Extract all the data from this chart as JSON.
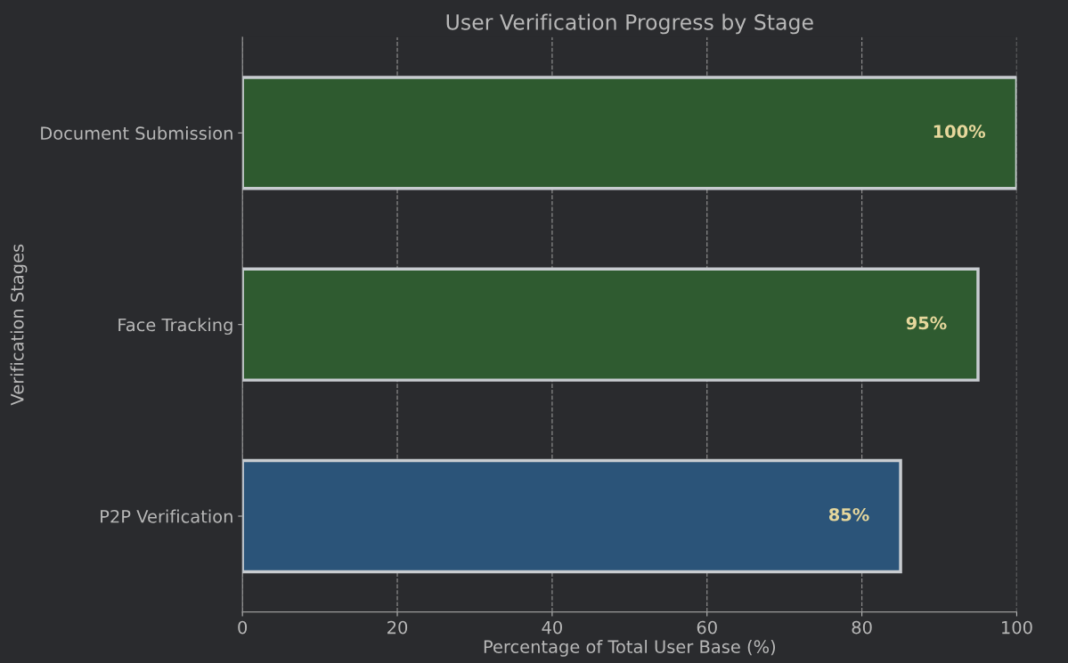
{
  "chart_data": {
    "type": "bar",
    "orientation": "horizontal",
    "title": "User Verification Progress by Stage",
    "xlabel": "Percentage of Total User Base (%)",
    "ylabel": "Verification Stages",
    "categories": [
      "Document Submission",
      "Face Tracking",
      "P2P Verification"
    ],
    "values": [
      100,
      95,
      85
    ],
    "colors": [
      "#2e5a2f",
      "#2f5b30",
      "#2b5479"
    ],
    "value_labels": [
      "100%",
      "95%",
      "85%"
    ],
    "xlim": [
      0,
      100
    ],
    "xticks": [
      0,
      20,
      40,
      60,
      80,
      100
    ],
    "grid": "x"
  }
}
